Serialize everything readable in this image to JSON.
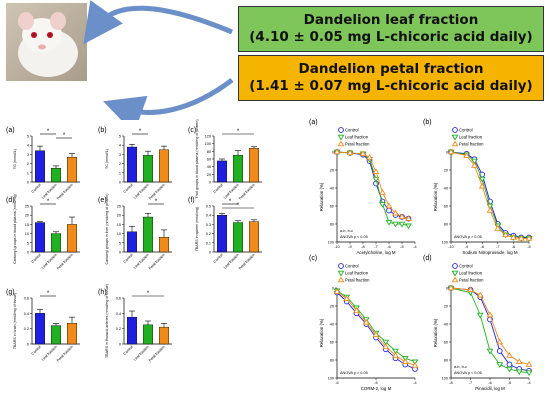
{
  "banners": {
    "leaf": {
      "line1": "Dandelion leaf fraction",
      "line2": "(4.10 ± 0.05 mg L-chicoric acid daily)",
      "color": "#7fc65a"
    },
    "petal": {
      "line1": "Dandelion petal fraction",
      "line2": "(1.41 ± 0.07 mg L-chicoric acid daily)",
      "color": "#f5b400"
    }
  },
  "colors": {
    "control": "#1f1fe0",
    "leaf": "#22b022",
    "petal": "#f08a1a"
  },
  "chart_data": [
    {
      "type": "bar",
      "panel": "(a)",
      "ylabel": "TG (mmol/L)",
      "ylim": [
        0,
        5
      ],
      "ticks": [
        0,
        1,
        2,
        3,
        4,
        5
      ],
      "categories": [
        "Control",
        "Leaf fraction",
        "Petal fraction"
      ],
      "values": [
        3.4,
        1.5,
        2.7
      ],
      "errors": [
        0.5,
        0.25,
        0.4
      ],
      "sig": [
        [
          0,
          1
        ],
        [
          1,
          2
        ]
      ]
    },
    {
      "type": "bar",
      "panel": "(b)",
      "ylabel": "TC (mmol/L)",
      "ylim": [
        0,
        5
      ],
      "ticks": [
        0,
        1,
        2,
        3,
        4,
        5
      ],
      "categories": [
        "Control",
        "Leaf fraction",
        "Petal fraction"
      ],
      "values": [
        3.8,
        2.9,
        3.5
      ],
      "errors": [
        0.3,
        0.45,
        0.4
      ],
      "sig": [
        [
          0,
          1
        ]
      ]
    },
    {
      "type": "bar",
      "panel": "(c)",
      "ylabel": "Thiol groups in blood plasma (nmol/mg of protein)",
      "ylim": [
        0,
        120
      ],
      "ticks": [
        0,
        20,
        40,
        60,
        80,
        100,
        120
      ],
      "categories": [
        "Control",
        "Leaf fraction",
        "Petal fraction"
      ],
      "values": [
        55,
        70,
        88
      ],
      "errors": [
        5,
        12,
        4
      ],
      "sig": [
        [
          0,
          2
        ]
      ]
    },
    {
      "type": "bar",
      "panel": "(d)",
      "ylabel": "Carbonyl groups in blood plasma (nmol/mg)",
      "ylim": [
        0,
        25
      ],
      "ticks": [
        0,
        5,
        10,
        15,
        20,
        25
      ],
      "categories": [
        "Control",
        "Leaf fraction",
        "Petal fraction"
      ],
      "values": [
        16,
        10,
        15
      ],
      "errors": [
        0.5,
        1,
        4
      ],
      "sig": [
        [
          0,
          1
        ]
      ]
    },
    {
      "type": "bar",
      "panel": "(e)",
      "ylabel": "Carbonyl groups in liver (nmol/mg of protein)",
      "ylim": [
        0,
        25
      ],
      "ticks": [
        0,
        5,
        10,
        15,
        20,
        25
      ],
      "categories": [
        "Control",
        "Leaf fraction",
        "Petal fraction"
      ],
      "values": [
        11,
        19,
        8
      ],
      "errors": [
        3,
        2,
        4
      ],
      "sig": [
        [
          1,
          2
        ]
      ]
    },
    {
      "type": "bar",
      "panel": "(f)",
      "ylabel": "TBARS in spleen (nmol/mg)",
      "ylim": [
        0,
        0.5
      ],
      "ticks": [
        0,
        0.1,
        0.2,
        0.3,
        0.4,
        0.5
      ],
      "categories": [
        "Control",
        "Leaf fraction",
        "Petal fraction"
      ],
      "values": [
        0.4,
        0.32,
        0.33
      ],
      "errors": [
        0.02,
        0.02,
        0.02
      ],
      "sig": [
        [
          0,
          1
        ],
        [
          0,
          2
        ]
      ]
    },
    {
      "type": "bar",
      "panel": "(g)",
      "ylabel": "TBARS in brain (nmol/mg of tissue)",
      "ylim": [
        0,
        0.6
      ],
      "ticks": [
        0,
        0.2,
        0.4,
        0.6
      ],
      "categories": [
        "Control",
        "Leaf fraction",
        "Petal fraction"
      ],
      "values": [
        0.4,
        0.24,
        0.27
      ],
      "errors": [
        0.05,
        0.03,
        0.08
      ],
      "sig": [
        [
          0,
          1
        ]
      ]
    },
    {
      "type": "bar",
      "panel": "(h)",
      "ylabel": "TBARS in thoracic arteries (nmol/mg of tissue)",
      "ylim": [
        0,
        0.6
      ],
      "ticks": [
        0,
        0.2,
        0.4,
        0.6
      ],
      "categories": [
        "Control",
        "Leaf fraction",
        "Petal fraction"
      ],
      "values": [
        0.35,
        0.25,
        0.22
      ],
      "errors": [
        0.08,
        0.05,
        0.05
      ],
      "sig": [
        [
          0,
          2
        ]
      ]
    },
    {
      "type": "line",
      "panel": "(a)",
      "xlabel": "Acetylcholine, log M",
      "ylabel": "Relaxation (%)",
      "xlim": [
        -10,
        -4
      ],
      "xticks": [
        -10,
        -9,
        -8,
        -7,
        -6,
        -5,
        -4
      ],
      "ylim": [
        0,
        100
      ],
      "yticks": [
        0,
        20,
        40,
        60,
        80,
        100
      ],
      "note1": "a-b, b-c",
      "note2": "ANOVA p < 0.05",
      "series": [
        {
          "name": "Control",
          "key": "control",
          "x": [
            -10,
            -9,
            -8,
            -7.5,
            -7,
            -6.5,
            -6,
            -5.5,
            -5,
            -4.5
          ],
          "y": [
            0,
            1,
            3,
            10,
            35,
            55,
            65,
            70,
            72,
            74
          ]
        },
        {
          "name": "Leaf fraction",
          "key": "leaf",
          "x": [
            -10,
            -9,
            -8,
            -7.5,
            -7,
            -6.5,
            -6,
            -5.5,
            -5,
            -4.5
          ],
          "y": [
            0,
            1,
            2,
            8,
            30,
            58,
            78,
            80,
            80,
            82
          ]
        },
        {
          "name": "Petal fraction",
          "key": "petal",
          "x": [
            -10,
            -9,
            -8,
            -7.5,
            -7,
            -6.5,
            -6,
            -5.5,
            -5,
            -4.5
          ],
          "y": [
            0,
            1,
            2,
            6,
            22,
            45,
            60,
            68,
            72,
            74
          ]
        }
      ]
    },
    {
      "type": "line",
      "panel": "(b)",
      "xlabel": "Sodium Nitroprusside, log M",
      "ylabel": "Relaxation (%)",
      "xlim": [
        -10,
        -5
      ],
      "xticks": [
        -10,
        -9,
        -8,
        -7,
        -6,
        -5
      ],
      "ylim": [
        0,
        100
      ],
      "yticks": [
        0,
        20,
        40,
        60,
        80,
        100
      ],
      "note1": "",
      "note2": "ANOVA p > 0.05",
      "series": [
        {
          "name": "Control",
          "key": "control",
          "x": [
            -10,
            -9,
            -8.5,
            -8,
            -7.5,
            -7,
            -6.5,
            -6,
            -5.5,
            -5
          ],
          "y": [
            0,
            2,
            8,
            25,
            55,
            80,
            90,
            93,
            95,
            95
          ]
        },
        {
          "name": "Leaf fraction",
          "key": "leaf",
          "x": [
            -10,
            -9,
            -8.5,
            -8,
            -7.5,
            -7,
            -6.5,
            -6,
            -5.5,
            -5
          ],
          "y": [
            0,
            3,
            10,
            30,
            60,
            82,
            92,
            95,
            96,
            96
          ]
        },
        {
          "name": "Petal fraction",
          "key": "petal",
          "x": [
            -10,
            -9,
            -8.5,
            -8,
            -7.5,
            -7,
            -6.5,
            -6,
            -5.5,
            -5
          ],
          "y": [
            0,
            4,
            15,
            38,
            65,
            85,
            92,
            95,
            96,
            96
          ]
        }
      ]
    },
    {
      "type": "line",
      "panel": "(c)",
      "xlabel": "CORM-2, log M",
      "ylabel": "Relaxation (%)",
      "xlim": [
        -6,
        -4
      ],
      "xticks": [
        -6,
        -5,
        -4
      ],
      "ylim": [
        0,
        100
      ],
      "yticks": [
        0,
        20,
        40,
        60,
        80,
        100
      ],
      "note1": "",
      "note2": "ANOVA p > 0.05",
      "series": [
        {
          "name": "Control",
          "key": "control",
          "x": [
            -6,
            -5.75,
            -5.5,
            -5.25,
            -5,
            -4.75,
            -4.5,
            -4.25,
            -4
          ],
          "y": [
            5,
            15,
            28,
            40,
            55,
            68,
            78,
            85,
            90
          ]
        },
        {
          "name": "Leaf fraction",
          "key": "leaf",
          "x": [
            -6,
            -5.75,
            -5.5,
            -5.25,
            -5,
            -4.75,
            -4.5,
            -4.25,
            -4
          ],
          "y": [
            3,
            10,
            22,
            35,
            50,
            60,
            70,
            78,
            82
          ]
        },
        {
          "name": "Petal fraction",
          "key": "petal",
          "x": [
            -6,
            -5.75,
            -5.5,
            -5.25,
            -5,
            -4.75,
            -4.5,
            -4.25,
            -4
          ],
          "y": [
            4,
            12,
            25,
            38,
            52,
            65,
            75,
            82,
            86
          ]
        }
      ]
    },
    {
      "type": "line",
      "panel": "(d)",
      "xlabel": "Pinacidil, log M",
      "ylabel": "Relaxation (%)",
      "xlim": [
        -8,
        -4
      ],
      "xticks": [
        -8,
        -7,
        -6,
        -5,
        -4
      ],
      "ylim": [
        0,
        100
      ],
      "yticks": [
        0,
        20,
        40,
        60,
        80,
        100
      ],
      "note1": "a-b, b-c",
      "note2": "ANOVA p < 0.05",
      "series": [
        {
          "name": "Control",
          "key": "control",
          "x": [
            -8,
            -7,
            -6.5,
            -6,
            -5.5,
            -5,
            -4.5,
            -4
          ],
          "y": [
            0,
            2,
            10,
            35,
            70,
            85,
            90,
            92
          ]
        },
        {
          "name": "Leaf fraction",
          "key": "leaf",
          "x": [
            -8,
            -7,
            -6.5,
            -6,
            -5.5,
            -5,
            -4.5,
            -4
          ],
          "y": [
            0,
            5,
            30,
            70,
            85,
            90,
            93,
            94
          ]
        },
        {
          "name": "Petal fraction",
          "key": "petal",
          "x": [
            -8,
            -7,
            -6.5,
            -6,
            -5.5,
            -5,
            -4.5,
            -4
          ],
          "y": [
            0,
            2,
            8,
            30,
            60,
            75,
            82,
            85
          ]
        }
      ]
    }
  ]
}
